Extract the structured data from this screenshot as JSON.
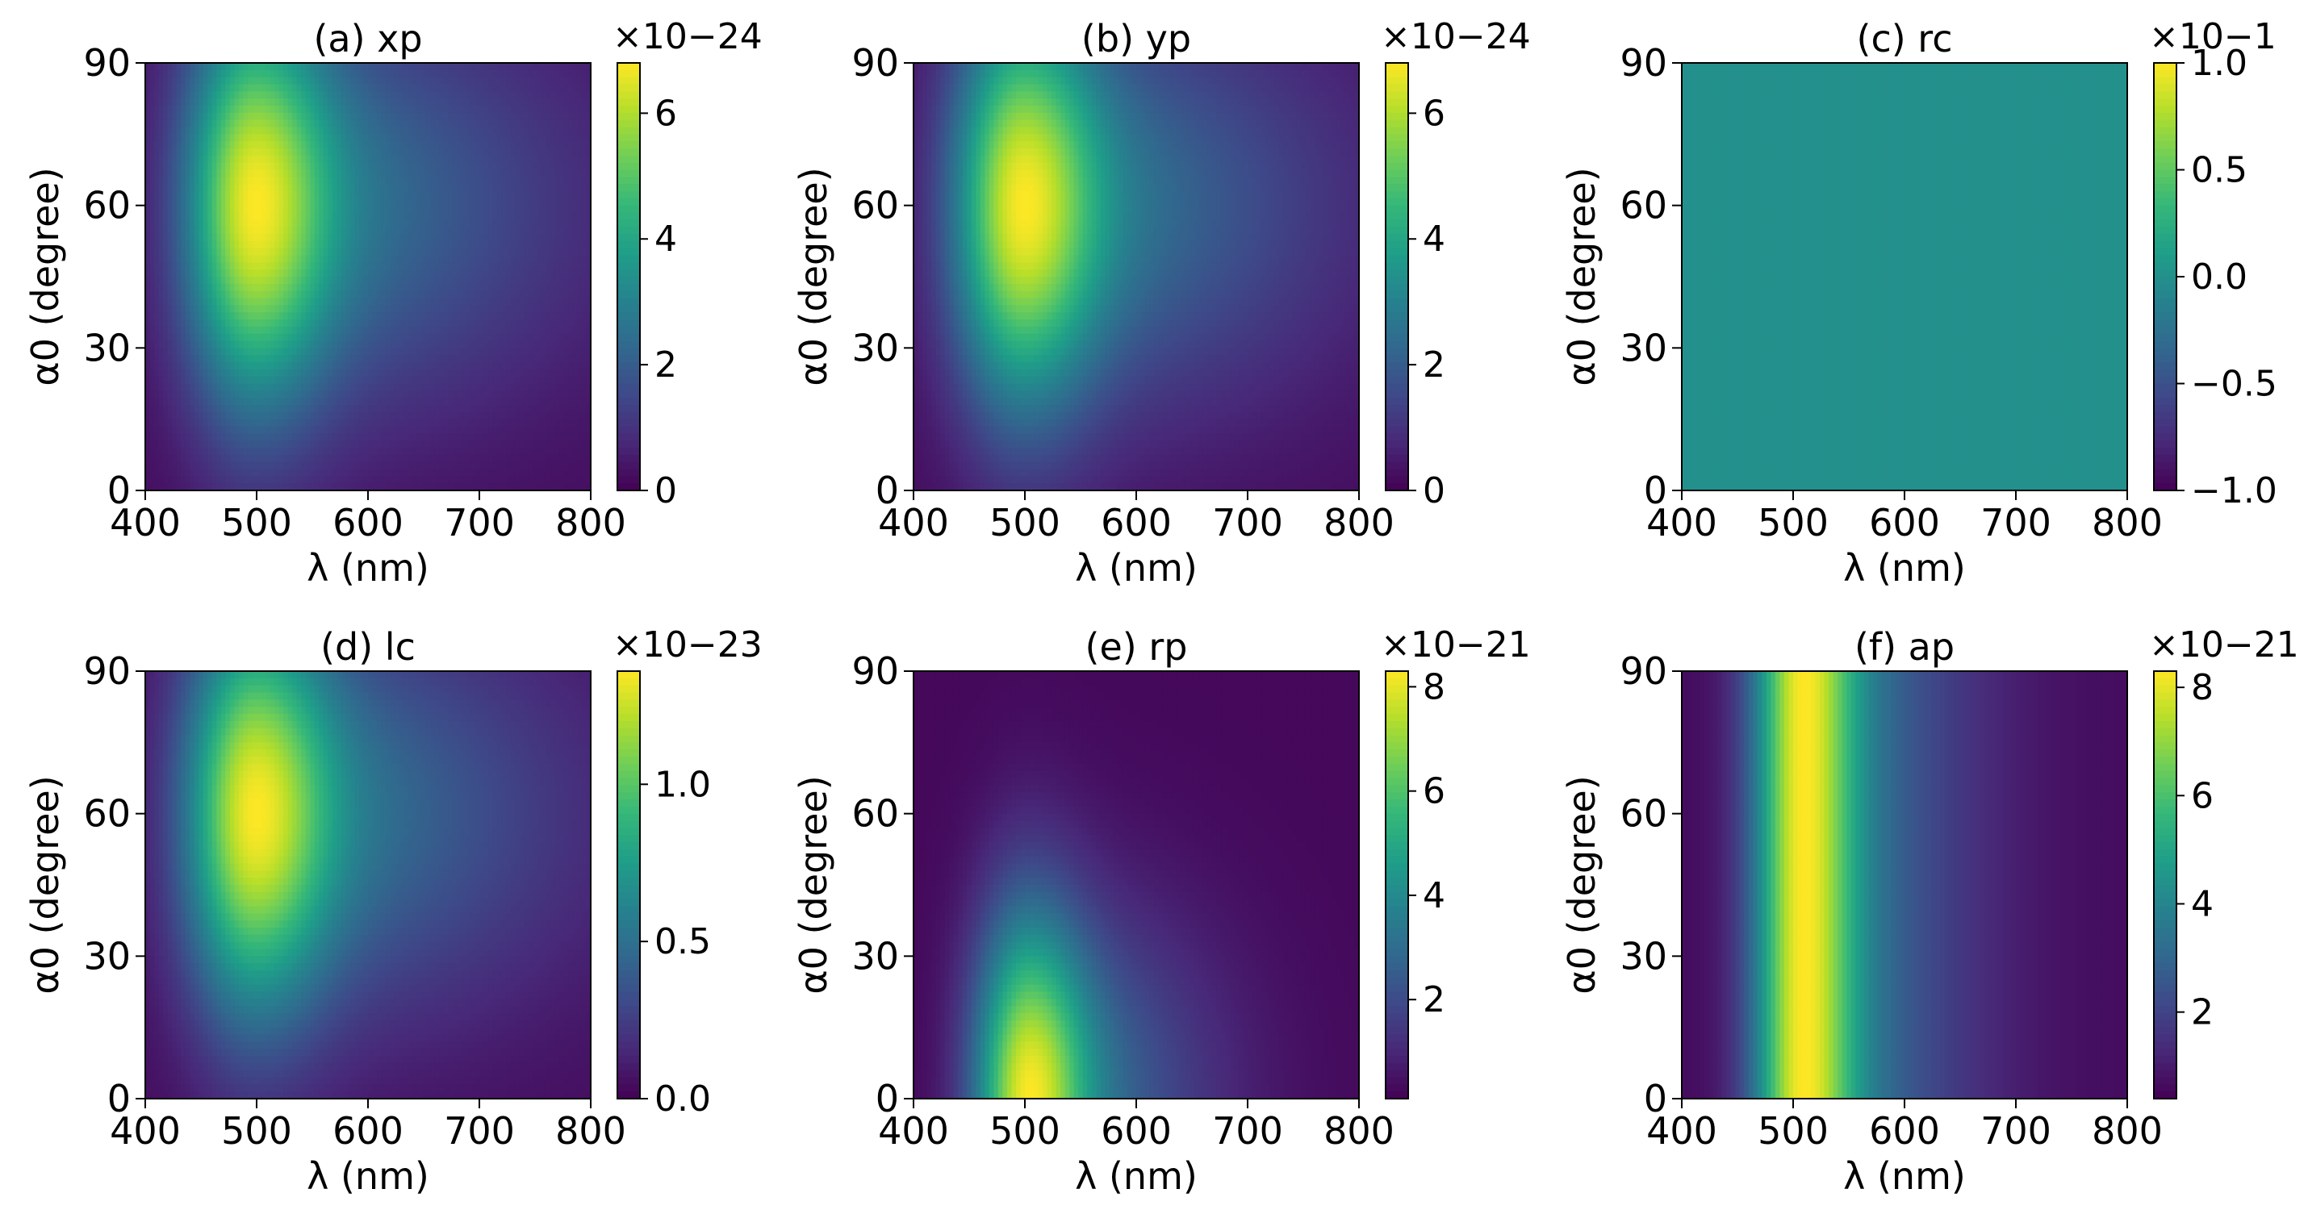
{
  "figure": {
    "colormap": "viridis",
    "colormap_stops": [
      "#440154",
      "#482878",
      "#3e4989",
      "#31688e",
      "#26828e",
      "#1f9e89",
      "#35b779",
      "#6ece58",
      "#b5de2b",
      "#fde725"
    ]
  },
  "chart_data": [
    {
      "id": "a",
      "type": "heatmap",
      "title": "(a) xp",
      "xlabel": "λ (nm)",
      "ylabel": "α0 (degree)",
      "x_ticks": [
        "400",
        "500",
        "600",
        "700",
        "800"
      ],
      "y_ticks": [
        "0",
        "30",
        "60",
        "90"
      ],
      "xlim": [
        400,
        800
      ],
      "ylim": [
        0,
        90
      ],
      "colorbar": {
        "range": [
          0,
          6.8
        ],
        "ticks": [
          {
            "value": 0,
            "label": "0"
          },
          {
            "value": 2,
            "label": "2"
          },
          {
            "value": 4,
            "label": "4"
          },
          {
            "value": 6,
            "label": "6"
          }
        ],
        "scale_label": "×10−24"
      },
      "field": {
        "kind": "peak",
        "lambda_peak": 500,
        "lambda_width": 45,
        "angle_peak": 60,
        "angle_width": 30,
        "baseline": 0.03,
        "red_tail_scale": 4.0
      }
    },
    {
      "id": "b",
      "type": "heatmap",
      "title": "(b) yp",
      "xlabel": "λ (nm)",
      "ylabel": "α0 (degree)",
      "x_ticks": [
        "400",
        "500",
        "600",
        "700",
        "800"
      ],
      "y_ticks": [
        "0",
        "30",
        "60",
        "90"
      ],
      "xlim": [
        400,
        800
      ],
      "ylim": [
        0,
        90
      ],
      "colorbar": {
        "range": [
          0,
          6.8
        ],
        "ticks": [
          {
            "value": 0,
            "label": "0"
          },
          {
            "value": 2,
            "label": "2"
          },
          {
            "value": 4,
            "label": "4"
          },
          {
            "value": 6,
            "label": "6"
          }
        ],
        "scale_label": "×10−24"
      },
      "field": {
        "kind": "peak",
        "lambda_peak": 500,
        "lambda_width": 45,
        "angle_peak": 60,
        "angle_width": 30,
        "baseline": 0.03,
        "red_tail_scale": 4.0
      }
    },
    {
      "id": "c",
      "type": "heatmap",
      "title": "(c) rc",
      "xlabel": "λ (nm)",
      "ylabel": "α0 (degree)",
      "x_ticks": [
        "400",
        "500",
        "600",
        "700",
        "800"
      ],
      "y_ticks": [
        "0",
        "30",
        "60",
        "90"
      ],
      "xlim": [
        400,
        800
      ],
      "ylim": [
        0,
        90
      ],
      "colorbar": {
        "range": [
          -1.0,
          1.0
        ],
        "ticks": [
          {
            "value": -1.0,
            "label": "−1.0"
          },
          {
            "value": -0.5,
            "label": "−0.5"
          },
          {
            "value": 0.0,
            "label": "0.0"
          },
          {
            "value": 0.5,
            "label": "0.5"
          },
          {
            "value": 1.0,
            "label": "1.0"
          }
        ],
        "scale_label": "×10−1"
      },
      "field": {
        "kind": "uniform",
        "value": 0.0
      }
    },
    {
      "id": "d",
      "type": "heatmap",
      "title": "(d) lc",
      "xlabel": "λ (nm)",
      "ylabel": "α0 (degree)",
      "x_ticks": [
        "400",
        "500",
        "600",
        "700",
        "800"
      ],
      "y_ticks": [
        "0",
        "30",
        "60",
        "90"
      ],
      "xlim": [
        400,
        800
      ],
      "ylim": [
        0,
        90
      ],
      "colorbar": {
        "range": [
          0,
          1.36
        ],
        "ticks": [
          {
            "value": 0.0,
            "label": "0.0"
          },
          {
            "value": 0.5,
            "label": "0.5"
          },
          {
            "value": 1.0,
            "label": "1.0"
          }
        ],
        "scale_label": "×10−23"
      },
      "field": {
        "kind": "peak",
        "lambda_peak": 500,
        "lambda_width": 45,
        "angle_peak": 60,
        "angle_width": 30,
        "baseline": 0.03,
        "red_tail_scale": 4.0
      }
    },
    {
      "id": "e",
      "type": "heatmap",
      "title": "(e) rp",
      "xlabel": "λ (nm)",
      "ylabel": "α0 (degree)",
      "x_ticks": [
        "400",
        "500",
        "600",
        "700",
        "800"
      ],
      "y_ticks": [
        "0",
        "30",
        "60",
        "90"
      ],
      "xlim": [
        400,
        800
      ],
      "ylim": [
        0,
        90
      ],
      "colorbar": {
        "range": [
          0.1,
          8.3
        ],
        "ticks": [
          {
            "value": 2,
            "label": "2"
          },
          {
            "value": 4,
            "label": "4"
          },
          {
            "value": 6,
            "label": "6"
          },
          {
            "value": 8,
            "label": "8"
          }
        ],
        "scale_label": "×10−21"
      },
      "field": {
        "kind": "peak",
        "lambda_peak": 505,
        "lambda_width": 35,
        "angle_peak": 0,
        "angle_width": 28,
        "baseline": 0.02,
        "red_tail_scale": 3.0
      }
    },
    {
      "id": "f",
      "type": "heatmap",
      "title": "(f) ap",
      "xlabel": "λ (nm)",
      "ylabel": "α0 (degree)",
      "x_ticks": [
        "400",
        "500",
        "600",
        "700",
        "800"
      ],
      "y_ticks": [
        "0",
        "30",
        "60",
        "90"
      ],
      "xlim": [
        400,
        800
      ],
      "ylim": [
        0,
        90
      ],
      "colorbar": {
        "range": [
          0.4,
          8.3
        ],
        "ticks": [
          {
            "value": 2,
            "label": "2"
          },
          {
            "value": 4,
            "label": "4"
          },
          {
            "value": 6,
            "label": "6"
          },
          {
            "value": 8,
            "label": "8"
          }
        ],
        "scale_label": "×10−21"
      },
      "field": {
        "kind": "band",
        "lambda_peak": 510,
        "lambda_width": 32,
        "baseline": 0.03,
        "red_tail_scale": 3.0
      }
    }
  ]
}
